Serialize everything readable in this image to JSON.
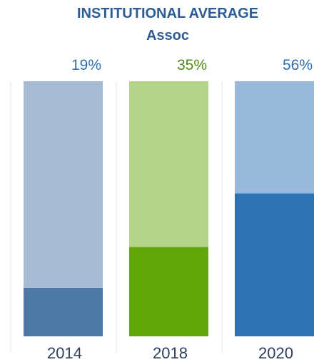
{
  "chart_data": {
    "type": "bar",
    "title": "INSTITUTIONAL AVERAGE",
    "subtitle": "Assoc",
    "categories": [
      "2014",
      "2018",
      "2020"
    ],
    "values": [
      19,
      35,
      56
    ],
    "value_labels": [
      "19%",
      "35%",
      "56%"
    ],
    "ylim": [
      0,
      100
    ],
    "xlabel": "",
    "ylabel": "",
    "grid": false,
    "legend": "none",
    "colors": {
      "fill": [
        "#4e79a7",
        "#62a60a",
        "#2f73b3"
      ],
      "background": [
        "#a8bbd4",
        "#b3d48a",
        "#98b9da"
      ],
      "label": [
        "#2f6fb0",
        "#4f8a1a",
        "#2f6fb0"
      ],
      "title": "#2d5c94",
      "separator": "#e6e6e6"
    }
  }
}
